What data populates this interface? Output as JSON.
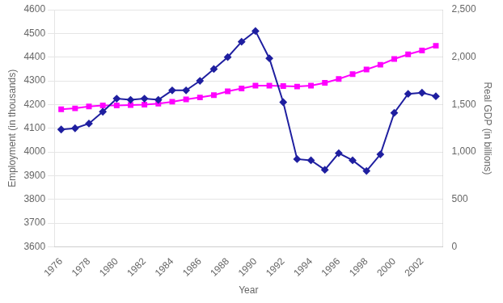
{
  "chart_data": {
    "type": "line",
    "x": [
      1976,
      1977,
      1978,
      1979,
      1980,
      1981,
      1982,
      1983,
      1984,
      1985,
      1986,
      1987,
      1988,
      1989,
      1990,
      1991,
      1992,
      1993,
      1994,
      1995,
      1996,
      1997,
      1998,
      1999,
      2000,
      2001,
      2002,
      2003
    ],
    "series": [
      {
        "color": "#1F1FA0",
        "marker": "diamond",
        "axis": "y",
        "values": [
          4095,
          4100,
          4120,
          4170,
          4225,
          4220,
          4225,
          4220,
          4260,
          4260,
          4300,
          4350,
          4400,
          4465,
          4510,
          4395,
          4210,
          3970,
          3965,
          3925,
          3995,
          3965,
          3920,
          3990,
          4165,
          4245,
          4250,
          4235
        ]
      },
      {
        "color": "#FF00FF",
        "marker": "square",
        "axis": "y2",
        "values": [
          1450,
          1460,
          1480,
          1490,
          1490,
          1495,
          1500,
          1510,
          1530,
          1555,
          1575,
          1600,
          1640,
          1670,
          1700,
          1700,
          1695,
          1690,
          1700,
          1730,
          1770,
          1820,
          1870,
          1920,
          1980,
          2030,
          2070,
          2120
        ]
      }
    ],
    "xlabel": "Year",
    "ylabel": "Employment (in thousands)",
    "y2label": "Real GDP (in billions)",
    "xlim": [
      1975.5,
      2003.5
    ],
    "xticks": [
      1976,
      1978,
      1980,
      1982,
      1984,
      1986,
      1988,
      1990,
      1992,
      1994,
      1996,
      1998,
      2000,
      2002
    ],
    "ylim": [
      3600,
      4600
    ],
    "yticks": [
      3600,
      3700,
      3800,
      3900,
      4000,
      4100,
      4200,
      4300,
      4400,
      4500,
      4600
    ],
    "y2lim": [
      0,
      2500
    ],
    "y2ticks": [
      0,
      {
        "value": 500,
        "label": "500"
      },
      {
        "value": 1000,
        "label": "1,000"
      },
      {
        "value": 1500,
        "label": "1,500"
      },
      {
        "value": 2000,
        "label": "2,000"
      },
      {
        "value": 2500,
        "label": "2,500"
      }
    ],
    "grid": true
  }
}
